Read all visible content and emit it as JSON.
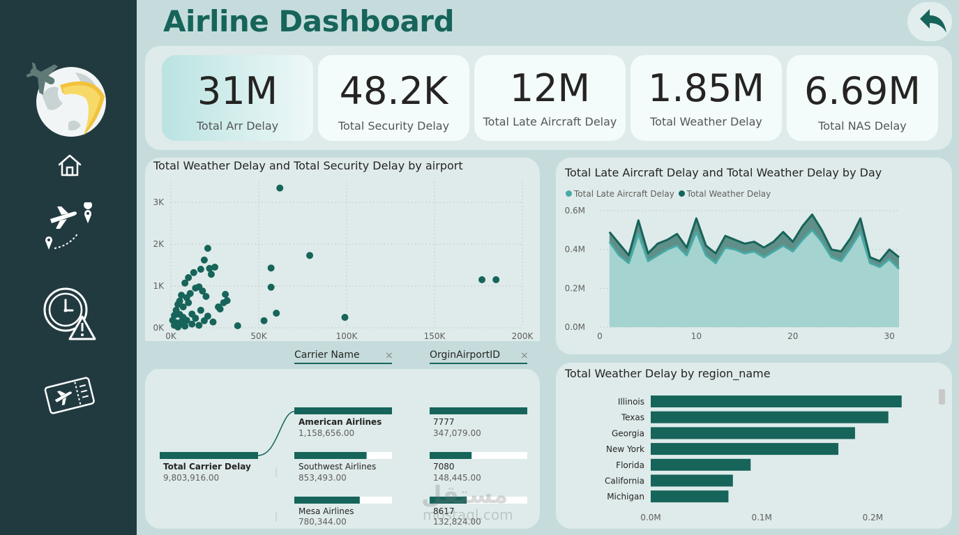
{
  "page": {
    "title": "Airline Dashboard"
  },
  "colors": {
    "primary": "#16645a",
    "light": "#47aaa6",
    "area": "#a5d3cf",
    "sidebar": "#213a3f"
  },
  "sidebar": {
    "icons": [
      "airline-logo-icon",
      "home-icon",
      "flight-route-icon",
      "delay-clock-icon",
      "boarding-ticket-icon"
    ]
  },
  "kpis": [
    {
      "value": "31M",
      "label": "Total Arr Delay"
    },
    {
      "value": "48.2K",
      "label": "Total Security Delay"
    },
    {
      "value": "12M",
      "label": "Total Late Aircraft Delay"
    },
    {
      "value": "1.85M",
      "label": "Total Weather Delay"
    },
    {
      "value": "6.69M",
      "label": "Total NAS Delay"
    }
  ],
  "decomp": {
    "fields": [
      "Carrier Name",
      "OrginAirportID"
    ],
    "root": {
      "name": "Total Carrier Delay",
      "value": "9,803,916.00"
    },
    "level1": [
      {
        "name": "American Airlines",
        "value": "1,158,656.00",
        "share": 1.0
      },
      {
        "name": "Southwest Airlines",
        "value": "853,493.00",
        "share": 0.74
      },
      {
        "name": "Mesa Airlines",
        "value": "780,344.00",
        "share": 0.67
      }
    ],
    "level2": [
      {
        "name": "7777",
        "value": "347,079.00",
        "share": 1.0
      },
      {
        "name": "7080",
        "value": "148,445.00",
        "share": 0.43
      },
      {
        "name": "8617",
        "value": "132,824.00",
        "share": 0.38
      }
    ]
  },
  "watermark": {
    "line1": "مستقل",
    "line2": "mostaql.com"
  },
  "chart_data": [
    {
      "type": "scatter",
      "title": "Total Weather Delay and Total Security Delay by airport",
      "xlabel": "",
      "ylabel": "",
      "xlim": [
        0,
        200000
      ],
      "ylim": [
        0,
        3500
      ],
      "x_ticks": [
        "0K",
        "50K",
        "100K",
        "150K",
        "200K"
      ],
      "y_ticks": [
        "0K",
        "1K",
        "2K",
        "3K"
      ],
      "points": [
        [
          62000,
          3340
        ],
        [
          79000,
          1730
        ],
        [
          21000,
          1900
        ],
        [
          57000,
          1430
        ],
        [
          57000,
          970
        ],
        [
          99000,
          250
        ],
        [
          177000,
          1150
        ],
        [
          185000,
          1150
        ],
        [
          60000,
          350
        ],
        [
          53000,
          170
        ],
        [
          38000,
          50
        ],
        [
          30000,
          600
        ],
        [
          32000,
          650
        ],
        [
          31000,
          800
        ],
        [
          27000,
          500
        ],
        [
          23000,
          1280
        ],
        [
          25000,
          1450
        ],
        [
          22000,
          1420
        ],
        [
          19000,
          1620
        ],
        [
          17000,
          1400
        ],
        [
          16000,
          980
        ],
        [
          18000,
          880
        ],
        [
          20000,
          750
        ],
        [
          13000,
          1320
        ],
        [
          10000,
          1200
        ],
        [
          8000,
          1070
        ],
        [
          14000,
          950
        ],
        [
          11000,
          820
        ],
        [
          9000,
          720
        ],
        [
          6000,
          780
        ],
        [
          5000,
          640
        ],
        [
          10000,
          600
        ],
        [
          17000,
          420
        ],
        [
          21000,
          280
        ],
        [
          19000,
          170
        ],
        [
          24000,
          140
        ],
        [
          14000,
          230
        ],
        [
          12000,
          330
        ],
        [
          7000,
          500
        ],
        [
          4000,
          560
        ],
        [
          3000,
          420
        ],
        [
          5000,
          320
        ],
        [
          7000,
          250
        ],
        [
          9000,
          180
        ],
        [
          3000,
          120
        ],
        [
          5000,
          80
        ],
        [
          2000,
          60
        ],
        [
          8000,
          40
        ],
        [
          12000,
          90
        ],
        [
          4000,
          20
        ],
        [
          1000,
          180
        ],
        [
          2000,
          300
        ],
        [
          6000,
          150
        ],
        [
          16000,
          60
        ],
        [
          28000,
          450
        ]
      ]
    },
    {
      "type": "area",
      "title": "Total Late Aircraft Delay and Total Weather Delay by Day",
      "xlabel": "",
      "ylabel": "",
      "xlim": [
        0,
        31
      ],
      "ylim": [
        0,
        0.6
      ],
      "x_ticks": [
        "0",
        "10",
        "20",
        "30"
      ],
      "y_ticks": [
        "0.0M",
        "0.2M",
        "0.4M",
        "0.6M"
      ],
      "x": [
        1,
        2,
        3,
        4,
        5,
        6,
        7,
        8,
        9,
        10,
        11,
        12,
        13,
        14,
        15,
        16,
        17,
        18,
        19,
        20,
        21,
        22,
        23,
        24,
        25,
        26,
        27,
        28,
        29,
        30,
        31
      ],
      "series": [
        {
          "name": "Total Late Aircraft Delay",
          "values": [
            0.44,
            0.37,
            0.33,
            0.48,
            0.34,
            0.37,
            0.4,
            0.42,
            0.37,
            0.49,
            0.37,
            0.33,
            0.41,
            0.4,
            0.38,
            0.39,
            0.36,
            0.39,
            0.42,
            0.39,
            0.45,
            0.5,
            0.44,
            0.36,
            0.34,
            0.41,
            0.49,
            0.33,
            0.31,
            0.35,
            0.3
          ]
        },
        {
          "name": "Total Weather Delay",
          "values": [
            0.49,
            0.43,
            0.37,
            0.55,
            0.38,
            0.43,
            0.45,
            0.48,
            0.41,
            0.56,
            0.42,
            0.38,
            0.47,
            0.45,
            0.43,
            0.44,
            0.41,
            0.44,
            0.49,
            0.44,
            0.52,
            0.58,
            0.5,
            0.4,
            0.39,
            0.46,
            0.56,
            0.36,
            0.34,
            0.4,
            0.36
          ]
        }
      ],
      "legend_position": "top-left"
    },
    {
      "type": "bar",
      "orientation": "horizontal",
      "title": "Total Weather Delay by region_name",
      "xlabel": "",
      "ylabel": "",
      "categories": [
        "Illinois",
        "Texas",
        "Georgia",
        "New York",
        "Florida",
        "California",
        "Michigan"
      ],
      "values": [
        0.226,
        0.214,
        0.184,
        0.169,
        0.09,
        0.074,
        0.07
      ],
      "xlim": [
        0,
        0.25
      ],
      "x_ticks": [
        "0.0M",
        "0.1M",
        "0.2M"
      ]
    }
  ]
}
